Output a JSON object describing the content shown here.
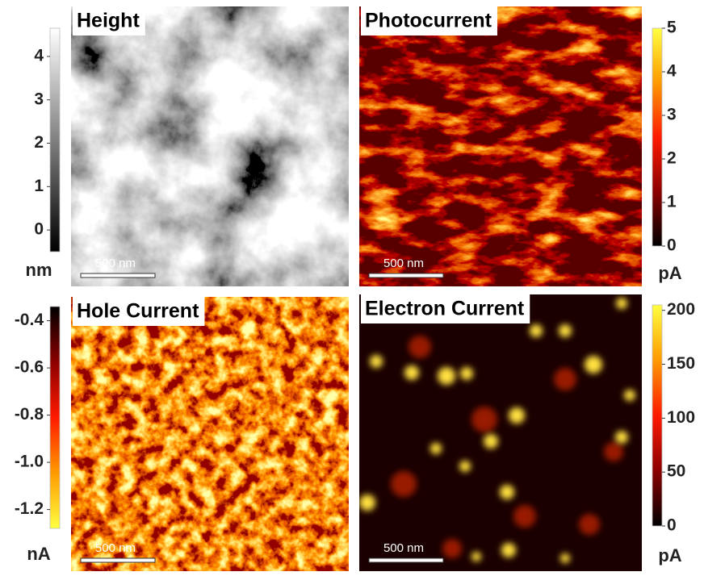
{
  "panels": [
    {
      "title": "Height",
      "scale_bar": "500 nm",
      "colorbar": {
        "unit": "nm",
        "range": [
          -0.5,
          4.65
        ],
        "ticks": [
          0,
          1,
          2,
          3,
          4
        ],
        "colors": [
          "#000000",
          "#808080",
          "#ffffff"
        ]
      }
    },
    {
      "title": "Photocurrent",
      "scale_bar": "500 nm",
      "colorbar": {
        "unit": "pA",
        "range": [
          0,
          5
        ],
        "ticks": [
          0,
          1,
          2,
          3,
          4,
          5
        ],
        "colors": [
          "#000000",
          "#8b0000",
          "#ff1a00",
          "#ff9a00",
          "#ffff40"
        ]
      }
    },
    {
      "title": "Hole Current",
      "scale_bar": "500 nm",
      "colorbar": {
        "unit": "nA",
        "range": [
          -1.28,
          -0.34
        ],
        "ticks": [
          -1.2,
          {
            "value": -1,
            "label": "-1.0"
          },
          -0.8,
          -0.6,
          -0.4
        ],
        "colors": [
          "#ffff40",
          "#ff9a00",
          "#ff1a00",
          "#8b0000",
          "#000000"
        ]
      }
    },
    {
      "title": "Electron Current",
      "scale_bar": "500 nm",
      "colorbar": {
        "unit": "pA",
        "range": [
          0,
          205
        ],
        "ticks": [
          0,
          50,
          100,
          150,
          200
        ],
        "colors": [
          "#000000",
          "#8b0000",
          "#ff1a00",
          "#ff9a00",
          "#ffff40"
        ]
      }
    }
  ]
}
